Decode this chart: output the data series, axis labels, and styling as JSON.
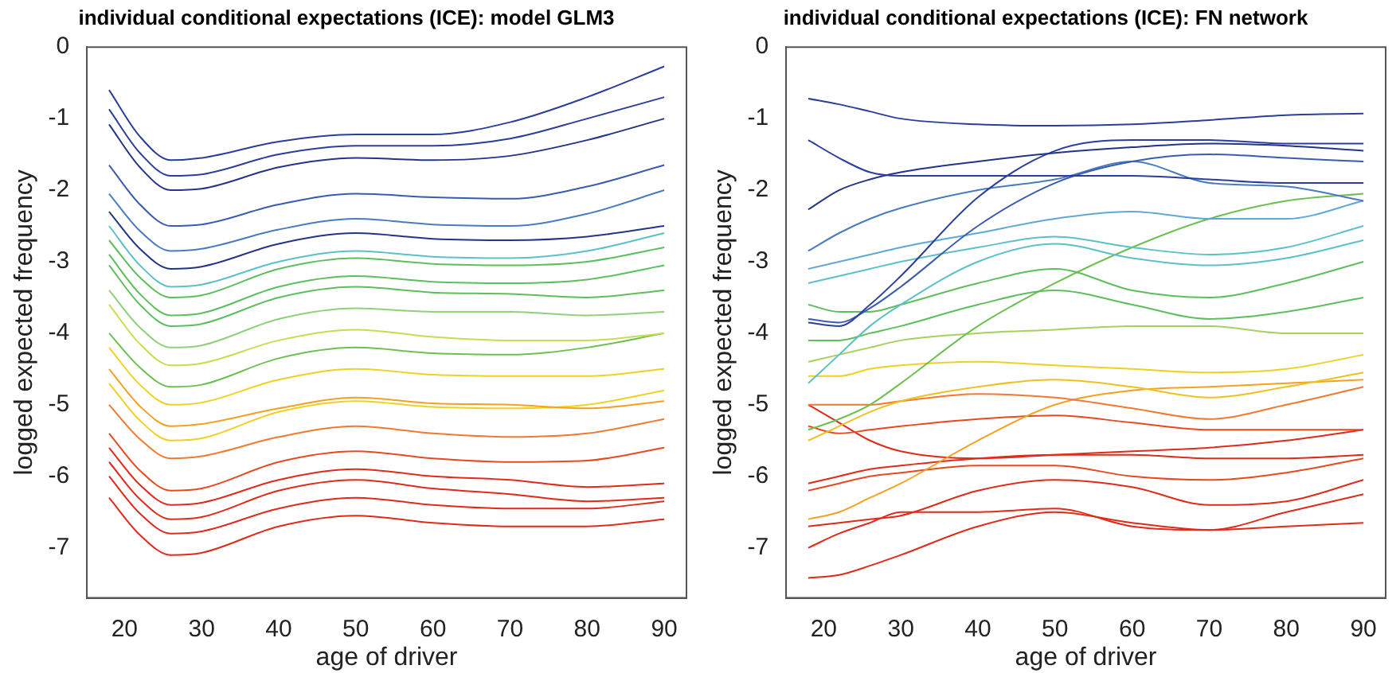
{
  "chart_data": [
    {
      "type": "line",
      "title": "individual conditional expectations (ICE): model GLM3",
      "xlabel": "age of driver",
      "ylabel": "logged expected frequency",
      "x": [
        18,
        22,
        26,
        30,
        40,
        50,
        60,
        70,
        80,
        90
      ],
      "xlim": [
        15.12,
        92.88
      ],
      "ylim": [
        -7.7,
        0
      ],
      "xticks": [
        20,
        30,
        40,
        50,
        60,
        70,
        80,
        90
      ],
      "yticks": [
        0,
        -1,
        -2,
        -3,
        -4,
        -5,
        -6,
        -7
      ],
      "grid": false,
      "legend": false,
      "series": [
        {
          "color": "#2c3e9c",
          "values": [
            -0.6,
            -1.25,
            -1.58,
            -1.55,
            -1.32,
            -1.22,
            -1.22,
            -1.05,
            -0.7,
            -0.27
          ]
        },
        {
          "color": "#2c3e9c",
          "values": [
            -0.87,
            -1.48,
            -1.8,
            -1.78,
            -1.5,
            -1.38,
            -1.38,
            -1.28,
            -1.0,
            -0.7
          ]
        },
        {
          "color": "#23348a",
          "values": [
            -1.08,
            -1.68,
            -2.0,
            -1.98,
            -1.68,
            -1.55,
            -1.58,
            -1.52,
            -1.3,
            -1.0
          ]
        },
        {
          "color": "#3a5cb0",
          "values": [
            -1.65,
            -2.2,
            -2.5,
            -2.48,
            -2.2,
            -2.05,
            -2.1,
            -2.12,
            -1.95,
            -1.65
          ]
        },
        {
          "color": "#4a7bbf",
          "values": [
            -2.05,
            -2.57,
            -2.85,
            -2.82,
            -2.55,
            -2.4,
            -2.48,
            -2.5,
            -2.33,
            -2.0
          ]
        },
        {
          "color": "#23348a",
          "values": [
            -2.3,
            -2.82,
            -3.1,
            -3.07,
            -2.75,
            -2.6,
            -2.68,
            -2.7,
            -2.65,
            -2.5
          ]
        },
        {
          "color": "#5cc0c8",
          "values": [
            -2.5,
            -3.05,
            -3.35,
            -3.32,
            -3.0,
            -2.85,
            -2.93,
            -2.95,
            -2.85,
            -2.6
          ]
        },
        {
          "color": "#5cbf5c",
          "values": [
            -2.7,
            -3.22,
            -3.5,
            -3.47,
            -3.1,
            -2.95,
            -3.03,
            -3.05,
            -3.0,
            -2.8
          ]
        },
        {
          "color": "#5cbf5c",
          "values": [
            -2.9,
            -3.45,
            -3.75,
            -3.72,
            -3.35,
            -3.2,
            -3.28,
            -3.3,
            -3.25,
            -3.05
          ]
        },
        {
          "color": "#5cbf5c",
          "values": [
            -3.05,
            -3.6,
            -3.9,
            -3.87,
            -3.5,
            -3.35,
            -3.43,
            -3.45,
            -3.5,
            -3.4
          ]
        },
        {
          "color": "#8fd07a",
          "values": [
            -3.4,
            -3.92,
            -4.2,
            -4.17,
            -3.8,
            -3.65,
            -3.7,
            -3.7,
            -3.75,
            -3.7
          ]
        },
        {
          "color": "#c8dc50",
          "values": [
            -3.6,
            -4.15,
            -4.45,
            -4.42,
            -4.1,
            -3.95,
            -4.05,
            -4.1,
            -4.1,
            -4.0
          ]
        },
        {
          "color": "#6cc050",
          "values": [
            -4.0,
            -4.48,
            -4.75,
            -4.72,
            -4.35,
            -4.2,
            -4.28,
            -4.3,
            -4.2,
            -4.0
          ]
        },
        {
          "color": "#f0d020",
          "values": [
            -4.2,
            -4.72,
            -5.0,
            -4.97,
            -4.65,
            -4.5,
            -4.58,
            -4.6,
            -4.6,
            -4.5
          ]
        },
        {
          "color": "#f5a020",
          "values": [
            -4.5,
            -5.02,
            -5.3,
            -5.27,
            -5.05,
            -4.9,
            -4.98,
            -5.0,
            -5.05,
            -4.95
          ]
        },
        {
          "color": "#f0d020",
          "values": [
            -4.7,
            -5.22,
            -5.5,
            -5.47,
            -5.1,
            -4.95,
            -5.03,
            -5.05,
            -5.0,
            -4.8
          ]
        },
        {
          "color": "#f07a30",
          "values": [
            -5.0,
            -5.48,
            -5.75,
            -5.72,
            -5.45,
            -5.3,
            -5.4,
            -5.45,
            -5.4,
            -5.2
          ]
        },
        {
          "color": "#e84a20",
          "values": [
            -5.4,
            -5.92,
            -6.2,
            -6.17,
            -5.8,
            -5.65,
            -5.75,
            -5.8,
            -5.78,
            -5.6
          ]
        },
        {
          "color": "#e02a1a",
          "values": [
            -5.6,
            -6.12,
            -6.4,
            -6.37,
            -6.05,
            -5.9,
            -6.0,
            -6.05,
            -6.15,
            -6.1
          ]
        },
        {
          "color": "#e02a1a",
          "values": [
            -5.8,
            -6.32,
            -6.6,
            -6.57,
            -6.2,
            -6.05,
            -6.17,
            -6.25,
            -6.35,
            -6.3
          ]
        },
        {
          "color": "#e02a1a",
          "values": [
            -6.0,
            -6.52,
            -6.8,
            -6.77,
            -6.45,
            -6.3,
            -6.4,
            -6.45,
            -6.45,
            -6.35
          ]
        },
        {
          "color": "#e02a1a",
          "values": [
            -6.3,
            -6.82,
            -7.1,
            -7.07,
            -6.7,
            -6.55,
            -6.65,
            -6.7,
            -6.7,
            -6.6
          ]
        }
      ]
    },
    {
      "type": "line",
      "title": "individual conditional expectations (ICE): FN network",
      "xlabel": "age of driver",
      "ylabel": "logged expected frequency",
      "x": [
        18,
        22,
        26,
        30,
        40,
        50,
        60,
        70,
        80,
        90
      ],
      "xlim": [
        15.12,
        92.88
      ],
      "ylim": [
        -7.7,
        0
      ],
      "xticks": [
        20,
        30,
        40,
        50,
        60,
        70,
        80,
        90
      ],
      "yticks": [
        0,
        -1,
        -2,
        -3,
        -4,
        -5,
        -6,
        -7
      ],
      "grid": false,
      "legend": false,
      "series": [
        {
          "color": "#2c3e9c",
          "values": [
            -0.72,
            -0.8,
            -0.9,
            -1.0,
            -1.08,
            -1.1,
            -1.08,
            -1.02,
            -0.95,
            -0.93
          ]
        },
        {
          "color": "#2c3e9c",
          "values": [
            -1.3,
            -1.55,
            -1.75,
            -1.8,
            -1.8,
            -1.8,
            -1.8,
            -1.85,
            -1.9,
            -1.9
          ]
        },
        {
          "color": "#23348a",
          "values": [
            -2.27,
            -2.0,
            -1.85,
            -1.75,
            -1.6,
            -1.48,
            -1.4,
            -1.35,
            -1.38,
            -1.45
          ]
        },
        {
          "color": "#2c3e9c",
          "values": [
            -3.85,
            -3.9,
            -3.6,
            -3.2,
            -2.1,
            -1.45,
            -1.3,
            -1.3,
            -1.35,
            -1.35
          ]
        },
        {
          "color": "#3a5cb0",
          "values": [
            -3.8,
            -3.85,
            -3.65,
            -3.35,
            -2.5,
            -1.9,
            -1.6,
            -1.5,
            -1.55,
            -1.6
          ]
        },
        {
          "color": "#4a7bbf",
          "values": [
            -2.85,
            -2.6,
            -2.4,
            -2.25,
            -2.0,
            -1.85,
            -1.6,
            -1.9,
            -1.95,
            -2.15
          ]
        },
        {
          "color": "#5fa8d6",
          "values": [
            -3.1,
            -3.0,
            -2.9,
            -2.8,
            -2.6,
            -2.4,
            -2.3,
            -2.4,
            -2.4,
            -2.15
          ]
        },
        {
          "color": "#5cc0c8",
          "values": [
            -3.3,
            -3.2,
            -3.1,
            -3.0,
            -2.8,
            -2.65,
            -2.8,
            -2.9,
            -2.8,
            -2.5
          ]
        },
        {
          "color": "#5cc0c8",
          "values": [
            -4.7,
            -4.3,
            -3.9,
            -3.6,
            -3.0,
            -2.75,
            -2.95,
            -3.05,
            -2.95,
            -2.7
          ]
        },
        {
          "color": "#5cbf5c",
          "values": [
            -3.6,
            -3.7,
            -3.7,
            -3.6,
            -3.3,
            -3.1,
            -3.4,
            -3.5,
            -3.3,
            -3.0
          ]
        },
        {
          "color": "#5cbf5c",
          "values": [
            -4.1,
            -4.1,
            -4.0,
            -3.9,
            -3.6,
            -3.4,
            -3.6,
            -3.8,
            -3.7,
            -3.5
          ]
        },
        {
          "color": "#6cc050",
          "values": [
            -5.35,
            -5.2,
            -5.0,
            -4.7,
            -3.9,
            -3.3,
            -2.8,
            -2.4,
            -2.15,
            -2.05
          ]
        },
        {
          "color": "#a8d060",
          "values": [
            -4.4,
            -4.3,
            -4.2,
            -4.1,
            -4.0,
            -3.95,
            -3.9,
            -3.9,
            -4.0,
            -4.0
          ]
        },
        {
          "color": "#f0d020",
          "values": [
            -4.6,
            -4.6,
            -4.5,
            -4.45,
            -4.4,
            -4.45,
            -4.5,
            -4.55,
            -4.5,
            -4.3
          ]
        },
        {
          "color": "#f0c020",
          "values": [
            -5.5,
            -5.3,
            -5.1,
            -4.95,
            -4.75,
            -4.65,
            -4.75,
            -4.9,
            -4.75,
            -4.55
          ]
        },
        {
          "color": "#f07a30",
          "values": [
            -5.0,
            -5.0,
            -5.0,
            -4.95,
            -4.85,
            -4.9,
            -5.05,
            -5.2,
            -5.0,
            -4.75
          ]
        },
        {
          "color": "#f5a020",
          "values": [
            -6.6,
            -6.5,
            -6.3,
            -6.1,
            -5.5,
            -5.0,
            -4.8,
            -4.75,
            -4.7,
            -4.65
          ]
        },
        {
          "color": "#e84a20",
          "values": [
            -5.3,
            -5.4,
            -5.35,
            -5.3,
            -5.2,
            -5.15,
            -5.25,
            -5.35,
            -5.35,
            -5.35
          ]
        },
        {
          "color": "#e02a1a",
          "values": [
            -5.0,
            -5.25,
            -5.5,
            -5.65,
            -5.75,
            -5.7,
            -5.65,
            -5.6,
            -5.5,
            -5.35
          ]
        },
        {
          "color": "#e02a1a",
          "values": [
            -6.1,
            -6.0,
            -5.9,
            -5.85,
            -5.75,
            -5.7,
            -5.7,
            -5.75,
            -5.75,
            -5.7
          ]
        },
        {
          "color": "#e84a20",
          "values": [
            -6.2,
            -6.1,
            -6.0,
            -5.95,
            -5.85,
            -5.85,
            -6.0,
            -6.05,
            -5.95,
            -5.75
          ]
        },
        {
          "color": "#e02a1a",
          "values": [
            -6.7,
            -6.65,
            -6.6,
            -6.55,
            -6.2,
            -6.05,
            -6.15,
            -6.4,
            -6.35,
            -6.05
          ]
        },
        {
          "color": "#e02a1a",
          "values": [
            -7.0,
            -6.8,
            -6.65,
            -6.5,
            -6.5,
            -6.45,
            -6.7,
            -6.75,
            -6.7,
            -6.65
          ]
        },
        {
          "color": "#e02a1a",
          "values": [
            -7.42,
            -7.38,
            -7.25,
            -7.1,
            -6.7,
            -6.5,
            -6.65,
            -6.75,
            -6.5,
            -6.25
          ]
        }
      ]
    }
  ]
}
